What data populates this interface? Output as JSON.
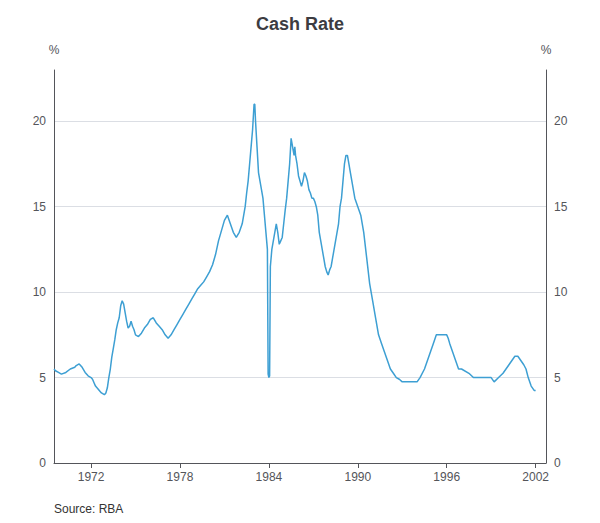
{
  "chart_data": {
    "type": "line",
    "title": "Cash Rate",
    "ylabel": "%",
    "y2label": "%",
    "annotations": [
      "Source: RBA"
    ],
    "color": "#3d9fd3",
    "grid": true,
    "xlim": [
      1969.5,
      2002.7
    ],
    "xticks": [
      1972,
      1978,
      1984,
      1990,
      1996,
      2002
    ],
    "ylim": [
      0,
      23
    ],
    "yticks": [
      0,
      5,
      10,
      15,
      20
    ],
    "y2lim": [
      0,
      23
    ],
    "y2ticks": [
      0,
      5,
      10,
      15,
      20
    ],
    "x": [
      1969.5,
      1969.6,
      1969.8,
      1970.0,
      1970.3,
      1970.6,
      1970.9,
      1971.0,
      1971.2,
      1971.4,
      1971.6,
      1971.8,
      1972.0,
      1972.1,
      1972.2,
      1972.3,
      1972.5,
      1972.7,
      1972.9,
      1973.0,
      1973.1,
      1973.2,
      1973.3,
      1973.4,
      1973.5,
      1973.6,
      1973.7,
      1973.8,
      1973.9,
      1974.0,
      1974.1,
      1974.2,
      1974.3,
      1974.4,
      1974.5,
      1974.6,
      1974.7,
      1974.8,
      1974.9,
      1975.0,
      1975.2,
      1975.4,
      1975.6,
      1975.8,
      1976.0,
      1976.2,
      1976.4,
      1976.6,
      1976.8,
      1977.0,
      1977.2,
      1977.4,
      1977.6,
      1977.8,
      1978.0,
      1978.2,
      1978.4,
      1978.6,
      1978.8,
      1979.0,
      1979.2,
      1979.4,
      1979.6,
      1979.8,
      1980.0,
      1980.2,
      1980.4,
      1980.6,
      1980.8,
      1981.0,
      1981.2,
      1981.4,
      1981.6,
      1981.8,
      1982.0,
      1982.2,
      1982.4,
      1982.5,
      1982.6,
      1982.7,
      1982.8,
      1982.9,
      1983.0,
      1983.05,
      1983.1,
      1983.2,
      1983.3,
      1983.4,
      1983.5,
      1983.6,
      1983.7,
      1983.8,
      1983.9,
      1983.95,
      1984.0,
      1984.05,
      1984.1,
      1984.2,
      1984.3,
      1984.4,
      1984.5,
      1984.6,
      1984.7,
      1984.8,
      1984.9,
      1985.0,
      1985.1,
      1985.2,
      1985.3,
      1985.4,
      1985.5,
      1985.6,
      1985.7,
      1985.75,
      1985.8,
      1985.9,
      1986.0,
      1986.1,
      1986.2,
      1986.3,
      1986.4,
      1986.5,
      1986.6,
      1986.7,
      1986.8,
      1986.9,
      1987.0,
      1987.1,
      1987.2,
      1987.3,
      1987.4,
      1987.5,
      1987.6,
      1987.7,
      1987.8,
      1987.9,
      1988.0,
      1988.1,
      1988.2,
      1988.3,
      1988.4,
      1988.5,
      1988.6,
      1988.7,
      1988.8,
      1988.9,
      1989.0,
      1989.1,
      1989.2,
      1989.3,
      1989.4,
      1989.5,
      1989.6,
      1989.7,
      1989.8,
      1990.0,
      1990.2,
      1990.4,
      1990.6,
      1990.8,
      1991.0,
      1991.2,
      1991.4,
      1991.6,
      1991.8,
      1992.0,
      1992.2,
      1992.4,
      1992.6,
      1992.8,
      1993.0,
      1993.5,
      1994.0,
      1994.2,
      1994.5,
      1994.7,
      1994.9,
      1995.1,
      1995.3,
      1995.5,
      1995.8,
      1996.0,
      1996.1,
      1996.2,
      1996.4,
      1996.6,
      1996.8,
      1997.0,
      1997.5,
      1997.8,
      1998.0,
      1998.5,
      1999.0,
      1999.2,
      1999.5,
      1999.8,
      2000.0,
      2000.2,
      2000.4,
      2000.6,
      2000.8,
      2001.0,
      2001.2,
      2001.35,
      2001.5,
      2001.7,
      2001.9,
      2002.0
    ],
    "values": [
      5.5,
      5.4,
      5.3,
      5.2,
      5.3,
      5.5,
      5.6,
      5.7,
      5.8,
      5.6,
      5.3,
      5.1,
      5.0,
      4.9,
      4.7,
      4.5,
      4.3,
      4.1,
      4.0,
      4.1,
      4.4,
      5.0,
      5.5,
      6.2,
      6.7,
      7.2,
      7.8,
      8.2,
      8.5,
      9.2,
      9.5,
      9.3,
      8.8,
      8.3,
      7.9,
      8.0,
      8.3,
      8.0,
      7.8,
      7.5,
      7.4,
      7.6,
      7.9,
      8.1,
      8.4,
      8.5,
      8.2,
      8.0,
      7.8,
      7.5,
      7.3,
      7.5,
      7.8,
      8.1,
      8.4,
      8.7,
      9.0,
      9.3,
      9.6,
      9.9,
      10.2,
      10.4,
      10.6,
      10.9,
      11.2,
      11.6,
      12.2,
      13.0,
      13.6,
      14.2,
      14.5,
      14.0,
      13.5,
      13.2,
      13.5,
      14.0,
      15.0,
      15.8,
      16.5,
      17.5,
      18.5,
      19.5,
      21.0,
      21.0,
      20.0,
      18.5,
      17.0,
      16.5,
      16.0,
      15.5,
      14.5,
      13.5,
      12.5,
      5.2,
      5.0,
      5.1,
      11.5,
      12.5,
      13.0,
      13.5,
      14.0,
      13.5,
      12.8,
      13.0,
      13.2,
      14.0,
      14.8,
      15.5,
      16.5,
      17.5,
      19.0,
      18.5,
      18.0,
      18.5,
      18.0,
      17.5,
      16.8,
      16.5,
      16.2,
      16.5,
      17.0,
      16.8,
      16.5,
      16.0,
      15.8,
      15.5,
      15.5,
      15.3,
      15.0,
      14.5,
      13.5,
      13.0,
      12.5,
      12.0,
      11.5,
      11.2,
      11.0,
      11.3,
      11.5,
      12.0,
      12.5,
      13.0,
      13.5,
      14.0,
      15.0,
      15.5,
      16.5,
      17.5,
      18.0,
      18.0,
      17.5,
      17.0,
      16.5,
      16.0,
      15.5,
      15.0,
      14.5,
      13.5,
      12.0,
      10.5,
      9.5,
      8.5,
      7.5,
      7.0,
      6.5,
      6.0,
      5.5,
      5.25,
      5.0,
      4.9,
      4.75,
      4.75,
      4.75,
      5.0,
      5.5,
      6.0,
      6.5,
      7.0,
      7.5,
      7.5,
      7.5,
      7.5,
      7.3,
      7.0,
      6.5,
      6.0,
      5.5,
      5.5,
      5.25,
      5.0,
      5.0,
      5.0,
      5.0,
      4.75,
      5.0,
      5.25,
      5.5,
      5.75,
      6.0,
      6.25,
      6.25,
      6.0,
      5.75,
      5.5,
      5.0,
      4.5,
      4.25,
      4.25
    ]
  }
}
